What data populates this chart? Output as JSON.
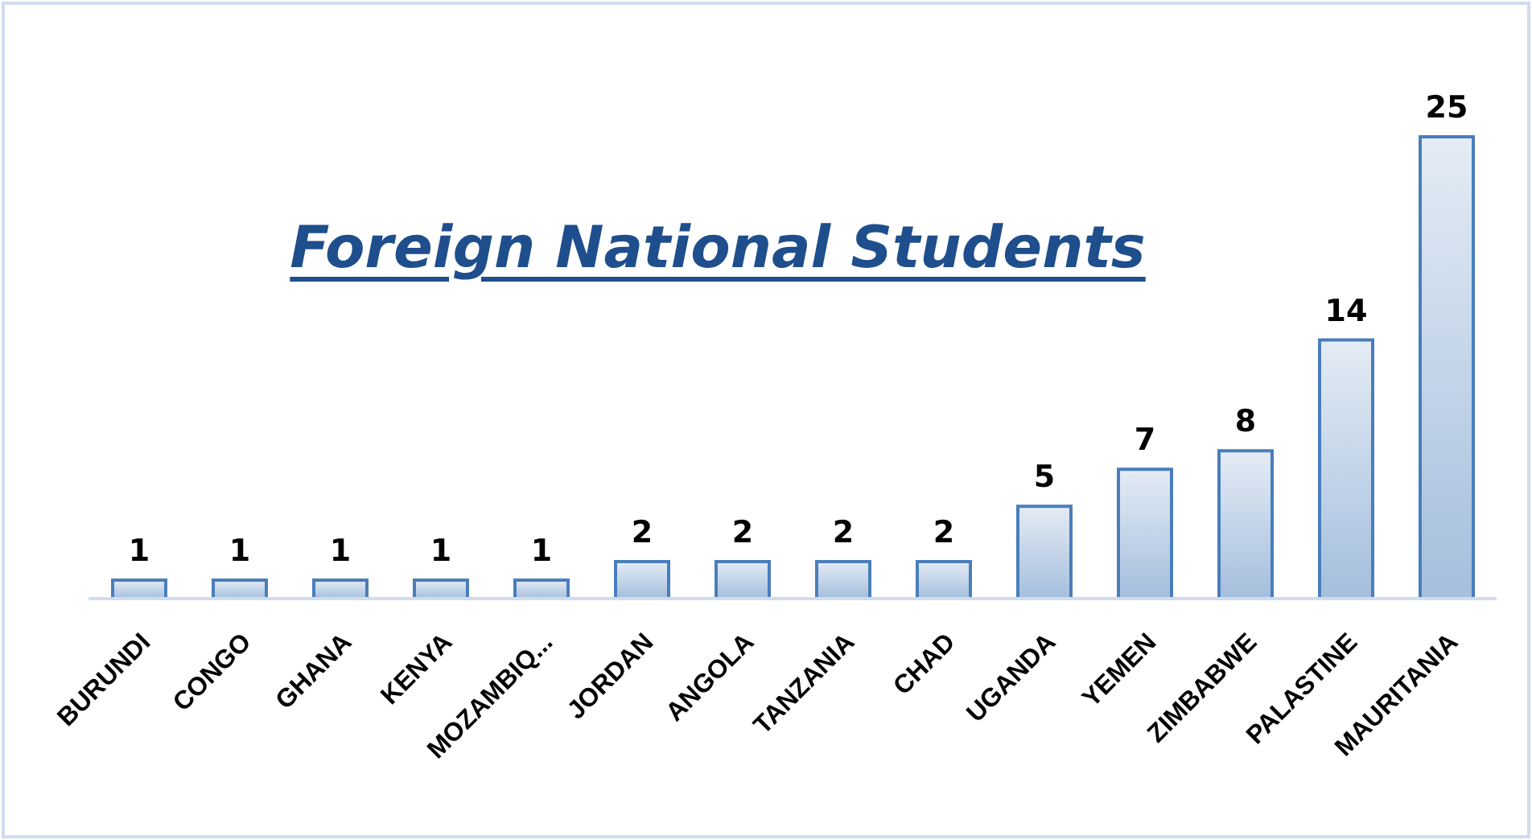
{
  "chart_data": {
    "type": "bar",
    "title": "Foreign National Students",
    "categories": [
      "BURUNDI",
      "CONGO",
      "GHANA",
      "KENYA",
      "MOZAMBIQ...",
      "JORDAN",
      "ANGOLA",
      "TANZANIA",
      "CHAD",
      "UGANDA",
      "YEMEN",
      "ZIMBABWE",
      "PALASTINE",
      "MAURITANIA"
    ],
    "values": [
      1,
      1,
      1,
      1,
      1,
      2,
      2,
      2,
      2,
      5,
      7,
      8,
      14,
      25
    ],
    "color": "#4a7ebb",
    "data_labels": true,
    "grid": false,
    "legend": false
  }
}
